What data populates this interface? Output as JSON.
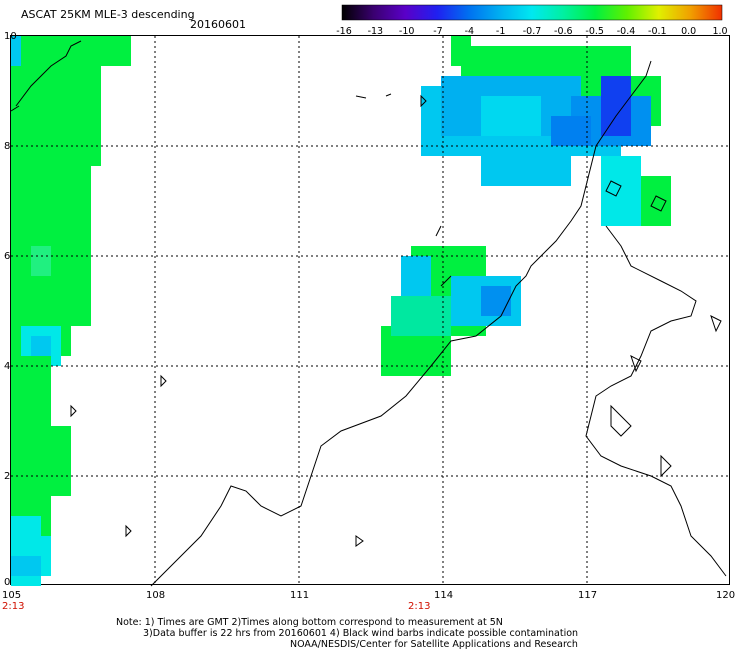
{
  "header": {
    "product": "ASCAT 25KM MLE-3 descending",
    "date": "20160601"
  },
  "colorbar": {
    "labels": [
      "-16",
      "-13",
      "-10",
      "-7",
      "-4",
      "-1",
      "-0.7",
      "-0.6",
      "-0.5",
      "-0.4",
      "-0.1",
      "0.0",
      "1.0"
    ],
    "colors": [
      "#000000",
      "#3a0070",
      "#5a00c8",
      "#2020f0",
      "#0070f0",
      "#00b0f0",
      "#00e8f0",
      "#00f0a0",
      "#00f040",
      "#60f000",
      "#e0f000",
      "#f0a000",
      "#f03000"
    ]
  },
  "axes": {
    "lon_labels": [
      "105",
      "108",
      "111",
      "114",
      "117",
      "120"
    ],
    "lat_labels": [
      "0",
      "2",
      "4",
      "6",
      "8",
      "10"
    ],
    "times": [
      "2:13",
      "2:13"
    ]
  },
  "notes": {
    "line1": "Note: 1) Times are GMT 2)Times along bottom correspond to measurement at 5N",
    "line2": "3)Data buffer is 22 hrs from 20160601 4) Black wind barbs indicate possible contamination",
    "line3": "NOAA/NESDIS/Center for Satellite Applications and Research"
  },
  "colors": {
    "green": "#00f040",
    "cyan": "#00e8e8",
    "light_blue": "#00c8f0",
    "blue": "#0090f0",
    "dark_blue": "#1040f0",
    "land_outline": "#000000",
    "grid": "#000000",
    "time_label": "#d01000"
  }
}
